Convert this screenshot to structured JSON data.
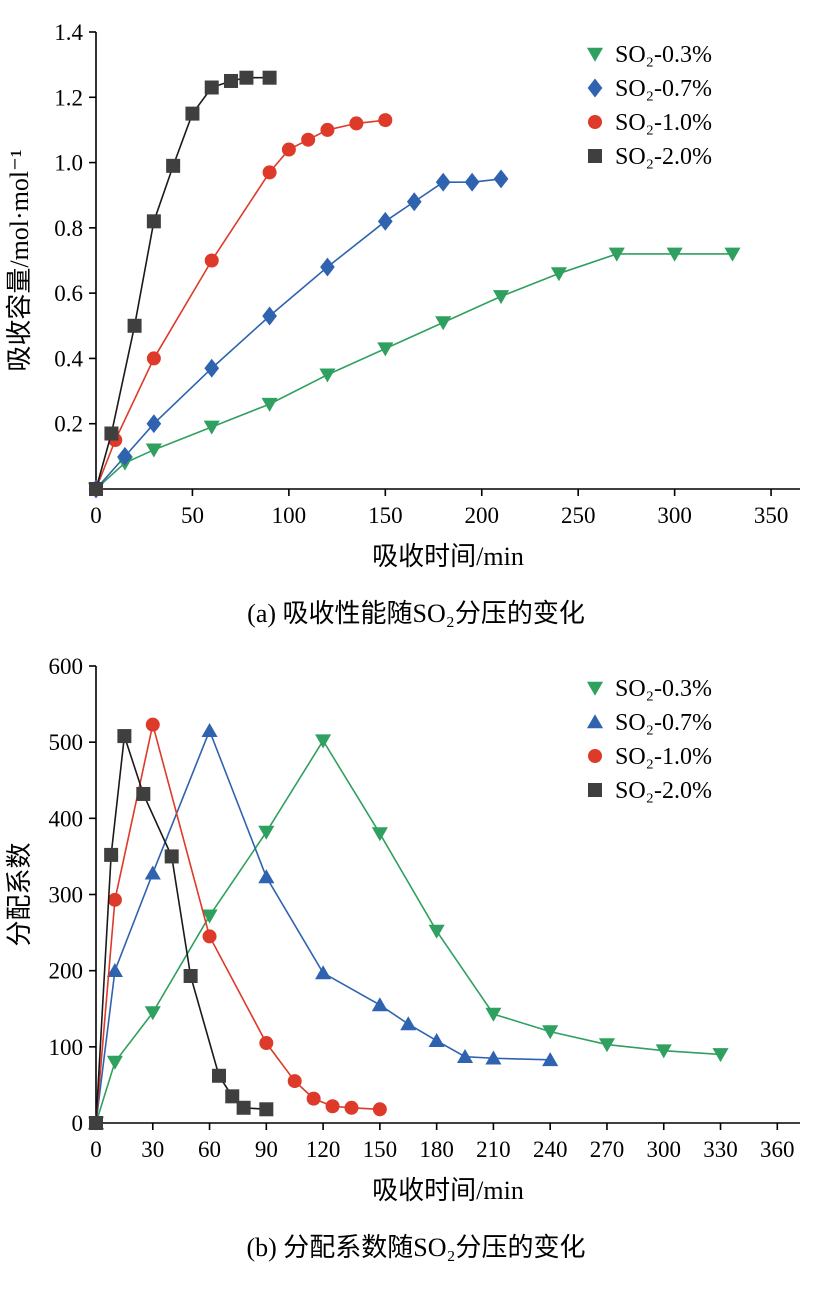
{
  "figure": {
    "captions": {
      "a": "(a) 吸收性能随SO₂分压的变化",
      "b": "(b) 分配系数随SO₂分压的变化"
    }
  },
  "chart_data": [
    {
      "id": "a",
      "type": "line",
      "title": "",
      "xlabel": "吸收时间/min",
      "ylabel": "吸收容量/mol·mol⁻¹",
      "xlim": [
        0,
        365
      ],
      "ylim": [
        0,
        1.4
      ],
      "xticks": [
        0,
        50,
        100,
        150,
        200,
        250,
        300,
        350
      ],
      "yticks": [
        0.2,
        0.4,
        0.6,
        0.8,
        1.0,
        1.2,
        1.4
      ],
      "xdec": 0,
      "ydec": 1,
      "grid": false,
      "legend_position": "top-right",
      "legend_offset": 205,
      "series": [
        {
          "name": "SO₂-0.3%",
          "marker": "triangle-down",
          "color": "#2fa05f",
          "x": [
            0,
            15,
            30,
            60,
            90,
            120,
            150,
            180,
            210,
            240,
            270,
            300,
            330
          ],
          "y": [
            0,
            0.08,
            0.12,
            0.19,
            0.26,
            0.35,
            0.43,
            0.51,
            0.59,
            0.66,
            0.72,
            0.72,
            0.72
          ]
        },
        {
          "name": "SO₂-0.7%",
          "marker": "diamond",
          "color": "#2f63b0",
          "x": [
            0,
            15,
            30,
            60,
            90,
            120,
            150,
            165,
            180,
            195,
            210
          ],
          "y": [
            0,
            0.1,
            0.2,
            0.37,
            0.53,
            0.68,
            0.82,
            0.88,
            0.94,
            0.94,
            0.95
          ]
        },
        {
          "name": "SO₂-1.0%",
          "marker": "circle",
          "color": "#dd3a2a",
          "x": [
            0,
            10,
            30,
            60,
            90,
            100,
            110,
            120,
            135,
            150
          ],
          "y": [
            0,
            0.15,
            0.4,
            0.7,
            0.97,
            1.04,
            1.07,
            1.1,
            1.12,
            1.13
          ]
        },
        {
          "name": "SO₂-2.0%",
          "marker": "square",
          "color": "#3f3f3f",
          "line_color": "#1a1a1a",
          "x": [
            0,
            8,
            20,
            30,
            40,
            50,
            60,
            70,
            78,
            90
          ],
          "y": [
            0,
            0.17,
            0.5,
            0.82,
            0.99,
            1.15,
            1.23,
            1.25,
            1.26,
            1.26
          ]
        }
      ]
    },
    {
      "id": "b",
      "type": "line",
      "title": "",
      "xlabel": "吸收时间/min",
      "ylabel": "分配系数",
      "xlim": [
        0,
        372
      ],
      "ylim": [
        0,
        600
      ],
      "xticks": [
        0,
        30,
        60,
        90,
        120,
        150,
        180,
        210,
        240,
        270,
        300,
        330,
        360
      ],
      "yticks": [
        0,
        100,
        200,
        300,
        400,
        500,
        600
      ],
      "xdec": 0,
      "ydec": 0,
      "grid": false,
      "legend_position": "top-right",
      "legend_offset": 205,
      "series": [
        {
          "name": "SO₂-0.3%",
          "marker": "triangle-down",
          "color": "#2fa05f",
          "x": [
            0,
            10,
            30,
            60,
            90,
            120,
            150,
            180,
            210,
            240,
            270,
            300,
            330
          ],
          "y": [
            0,
            80,
            145,
            272,
            382,
            502,
            380,
            252,
            143,
            120,
            103,
            95,
            90
          ]
        },
        {
          "name": "SO₂-0.7%",
          "marker": "triangle-up",
          "color": "#2f63b0",
          "x": [
            0,
            10,
            30,
            60,
            90,
            120,
            150,
            165,
            180,
            195,
            210,
            240
          ],
          "y": [
            0,
            200,
            328,
            515,
            323,
            197,
            155,
            130,
            108,
            87,
            85,
            83
          ]
        },
        {
          "name": "SO₂-1.0%",
          "marker": "circle",
          "color": "#dd3a2a",
          "x": [
            0,
            10,
            30,
            60,
            90,
            105,
            115,
            125,
            135,
            150
          ],
          "y": [
            0,
            293,
            523,
            245,
            105,
            55,
            32,
            22,
            20,
            18
          ]
        },
        {
          "name": "SO₂-2.0%",
          "marker": "square",
          "color": "#3f3f3f",
          "line_color": "#1a1a1a",
          "x": [
            0,
            8,
            15,
            25,
            40,
            50,
            65,
            72,
            78,
            90
          ],
          "y": [
            0,
            352,
            508,
            432,
            350,
            193,
            62,
            35,
            20,
            18
          ]
        }
      ]
    }
  ]
}
